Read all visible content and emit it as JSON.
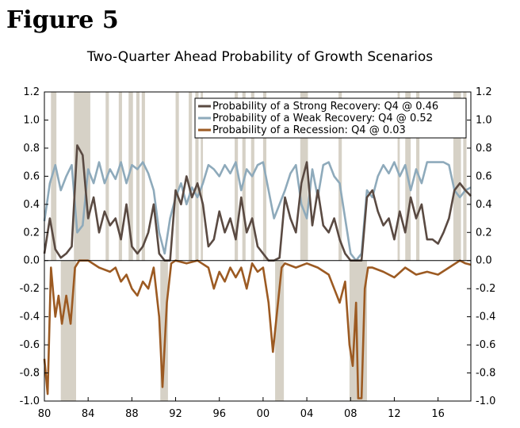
{
  "figure_label": "Figure 5",
  "chart_data": {
    "type": "line",
    "title": "Two-Quarter Ahead Probability of Growth Scenarios",
    "xlabel": "",
    "ylabel": "",
    "xlim": [
      1980,
      2019
    ],
    "ylim": [
      -1.0,
      1.2
    ],
    "x_ticks": [
      1980,
      1984,
      1988,
      1992,
      1996,
      2000,
      2004,
      2008,
      2012,
      2016
    ],
    "x_tick_labels": [
      "80",
      "84",
      "88",
      "92",
      "96",
      "00",
      "04",
      "08",
      "12",
      "16"
    ],
    "y_ticks": [
      1.2,
      1.0,
      0.8,
      0.6,
      0.4,
      0.2,
      0.0,
      -0.2,
      -0.4,
      -0.6,
      -0.8,
      -1.0
    ],
    "y_tick_labels": [
      "1.2",
      "1.0",
      "0.8",
      "0.6",
      "0.4",
      "0.2",
      "0.0",
      "-0.2",
      "-0.4",
      "-0.6",
      "-0.8",
      "-1.0"
    ],
    "legend_position": "top-right",
    "shaded_periods_upper": [
      [
        1980.6,
        1981.1
      ],
      [
        1982.7,
        1984.2
      ],
      [
        1985.6,
        1985.9
      ],
      [
        1986.8,
        1987.1
      ],
      [
        1987.7,
        1988.1
      ],
      [
        1988.4,
        1988.7
      ],
      [
        1988.9,
        1989.2
      ],
      [
        1992.0,
        1992.3
      ],
      [
        1993.2,
        1993.5
      ],
      [
        1993.8,
        1994.1
      ],
      [
        1994.3,
        1994.5
      ],
      [
        1997.4,
        1997.7
      ],
      [
        1998.1,
        1998.4
      ],
      [
        1998.9,
        1999.2
      ],
      [
        2000.0,
        2000.3
      ],
      [
        2003.4,
        2004.1
      ],
      [
        2006.9,
        2007.2
      ],
      [
        2012.3,
        2012.5
      ],
      [
        2013.0,
        2013.5
      ],
      [
        2014.0,
        2014.3
      ],
      [
        2017.4,
        2018.1
      ],
      [
        2018.3,
        2018.6
      ]
    ],
    "shaded_periods_lower": [
      [
        1981.5,
        1982.9
      ],
      [
        1990.6,
        1991.3
      ],
      [
        2001.1,
        2001.9
      ],
      [
        2007.9,
        2009.5
      ]
    ],
    "series": [
      {
        "name": "Probability of a Strong Recovery: Q4 @ 0.46",
        "color": "#5a4a42",
        "x": [
          1980.0,
          1980.5,
          1981.0,
          1981.5,
          1982.0,
          1982.5,
          1983.0,
          1983.5,
          1984.0,
          1984.5,
          1985.0,
          1985.5,
          1986.0,
          1986.5,
          1987.0,
          1987.5,
          1988.0,
          1988.5,
          1989.0,
          1989.5,
          1990.0,
          1990.5,
          1991.0,
          1991.5,
          1992.0,
          1992.5,
          1993.0,
          1993.5,
          1994.0,
          1994.5,
          1995.0,
          1995.5,
          1996.0,
          1996.5,
          1997.0,
          1997.5,
          1998.0,
          1998.5,
          1999.0,
          1999.5,
          2000.0,
          2000.5,
          2001.0,
          2001.5,
          2002.0,
          2002.5,
          2003.0,
          2003.5,
          2004.0,
          2004.5,
          2005.0,
          2005.5,
          2006.0,
          2006.5,
          2007.0,
          2007.5,
          2008.0,
          2008.5,
          2009.0,
          2009.5,
          2010.0,
          2010.5,
          2011.0,
          2011.5,
          2012.0,
          2012.5,
          2013.0,
          2013.5,
          2014.0,
          2014.5,
          2015.0,
          2015.5,
          2016.0,
          2016.5,
          2017.0,
          2017.5,
          2018.0,
          2018.5,
          2019.0
        ],
        "values": [
          0.05,
          0.3,
          0.08,
          0.02,
          0.05,
          0.1,
          0.82,
          0.75,
          0.3,
          0.45,
          0.2,
          0.35,
          0.25,
          0.3,
          0.15,
          0.4,
          0.1,
          0.05,
          0.1,
          0.2,
          0.4,
          0.05,
          0.0,
          0.0,
          0.5,
          0.4,
          0.6,
          0.45,
          0.55,
          0.4,
          0.1,
          0.15,
          0.35,
          0.2,
          0.3,
          0.15,
          0.45,
          0.2,
          0.3,
          0.1,
          0.05,
          0.0,
          0.0,
          0.02,
          0.45,
          0.3,
          0.2,
          0.55,
          0.7,
          0.25,
          0.5,
          0.25,
          0.2,
          0.3,
          0.15,
          0.05,
          0.0,
          0.0,
          0.0,
          0.45,
          0.5,
          0.35,
          0.25,
          0.3,
          0.15,
          0.35,
          0.2,
          0.45,
          0.3,
          0.4,
          0.15,
          0.15,
          0.12,
          0.2,
          0.3,
          0.5,
          0.55,
          0.5,
          0.46
        ]
      },
      {
        "name": "Probability of a Weak Recovery: Q4 @ 0.52",
        "color": "#8eaabb",
        "x": [
          1980.0,
          1980.5,
          1981.0,
          1981.5,
          1982.0,
          1982.5,
          1983.0,
          1983.5,
          1984.0,
          1984.5,
          1985.0,
          1985.5,
          1986.0,
          1986.5,
          1987.0,
          1987.5,
          1988.0,
          1988.5,
          1989.0,
          1989.5,
          1990.0,
          1990.5,
          1991.0,
          1991.5,
          1992.0,
          1992.5,
          1993.0,
          1993.5,
          1994.0,
          1994.5,
          1995.0,
          1995.5,
          1996.0,
          1996.5,
          1997.0,
          1997.5,
          1998.0,
          1998.5,
          1999.0,
          1999.5,
          2000.0,
          2000.5,
          2001.0,
          2001.5,
          2002.0,
          2002.5,
          2003.0,
          2003.5,
          2004.0,
          2004.5,
          2005.0,
          2005.5,
          2006.0,
          2006.5,
          2007.0,
          2007.5,
          2008.0,
          2008.5,
          2009.0,
          2009.5,
          2010.0,
          2010.5,
          2011.0,
          2011.5,
          2012.0,
          2012.5,
          2013.0,
          2013.5,
          2014.0,
          2014.5,
          2015.0,
          2015.5,
          2016.0,
          2016.5,
          2017.0,
          2017.5,
          2018.0,
          2018.5,
          2019.0
        ],
        "values": [
          0.28,
          0.55,
          0.68,
          0.5,
          0.6,
          0.68,
          0.2,
          0.25,
          0.65,
          0.55,
          0.7,
          0.55,
          0.65,
          0.58,
          0.7,
          0.55,
          0.68,
          0.65,
          0.7,
          0.62,
          0.5,
          0.2,
          0.05,
          0.3,
          0.45,
          0.55,
          0.4,
          0.52,
          0.45,
          0.55,
          0.68,
          0.65,
          0.6,
          0.68,
          0.62,
          0.7,
          0.5,
          0.65,
          0.6,
          0.68,
          0.7,
          0.5,
          0.3,
          0.4,
          0.5,
          0.62,
          0.68,
          0.4,
          0.3,
          0.65,
          0.45,
          0.68,
          0.7,
          0.6,
          0.55,
          0.3,
          0.05,
          0.0,
          0.05,
          0.5,
          0.45,
          0.6,
          0.68,
          0.62,
          0.7,
          0.6,
          0.68,
          0.5,
          0.65,
          0.55,
          0.7,
          0.7,
          0.7,
          0.7,
          0.68,
          0.5,
          0.45,
          0.5,
          0.52
        ]
      },
      {
        "name": "Probability of a Recession: Q4 @ 0.03",
        "color": "#9c5a22",
        "x": [
          1980.0,
          1980.3,
          1980.6,
          1981.0,
          1981.3,
          1981.6,
          1982.0,
          1982.4,
          1982.8,
          1983.2,
          1984.0,
          1985.0,
          1986.0,
          1986.5,
          1987.0,
          1987.5,
          1988.0,
          1988.5,
          1989.0,
          1989.5,
          1990.0,
          1990.5,
          1990.8,
          1991.2,
          1991.6,
          1992.0,
          1993.0,
          1994.0,
          1995.0,
          1995.5,
          1996.0,
          1996.5,
          1997.0,
          1997.5,
          1998.0,
          1998.5,
          1999.0,
          1999.5,
          2000.0,
          2000.5,
          2000.9,
          2001.3,
          2001.7,
          2002.0,
          2003.0,
          2004.0,
          2005.0,
          2006.0,
          2006.5,
          2007.0,
          2007.5,
          2007.9,
          2008.2,
          2008.5,
          2008.7,
          2009.0,
          2009.3,
          2009.6,
          2010.0,
          2011.0,
          2012.0,
          2013.0,
          2014.0,
          2015.0,
          2016.0,
          2017.0,
          2018.0,
          2018.5,
          2019.0
        ],
        "values": [
          -0.7,
          -0.95,
          -0.05,
          -0.4,
          -0.25,
          -0.45,
          -0.25,
          -0.45,
          -0.05,
          0.0,
          0.0,
          -0.05,
          -0.08,
          -0.05,
          -0.15,
          -0.1,
          -0.2,
          -0.25,
          -0.15,
          -0.2,
          -0.05,
          -0.4,
          -0.9,
          -0.3,
          -0.02,
          0.0,
          -0.02,
          0.0,
          -0.05,
          -0.2,
          -0.08,
          -0.15,
          -0.05,
          -0.12,
          -0.05,
          -0.2,
          -0.02,
          -0.08,
          -0.05,
          -0.3,
          -0.65,
          -0.35,
          -0.05,
          -0.02,
          -0.05,
          -0.02,
          -0.05,
          -0.1,
          -0.2,
          -0.3,
          -0.15,
          -0.6,
          -0.75,
          -0.3,
          -0.98,
          -0.98,
          -0.2,
          -0.05,
          -0.05,
          -0.08,
          -0.12,
          -0.05,
          -0.1,
          -0.08,
          -0.1,
          -0.05,
          0.0,
          -0.02,
          -0.03
        ]
      }
    ]
  }
}
